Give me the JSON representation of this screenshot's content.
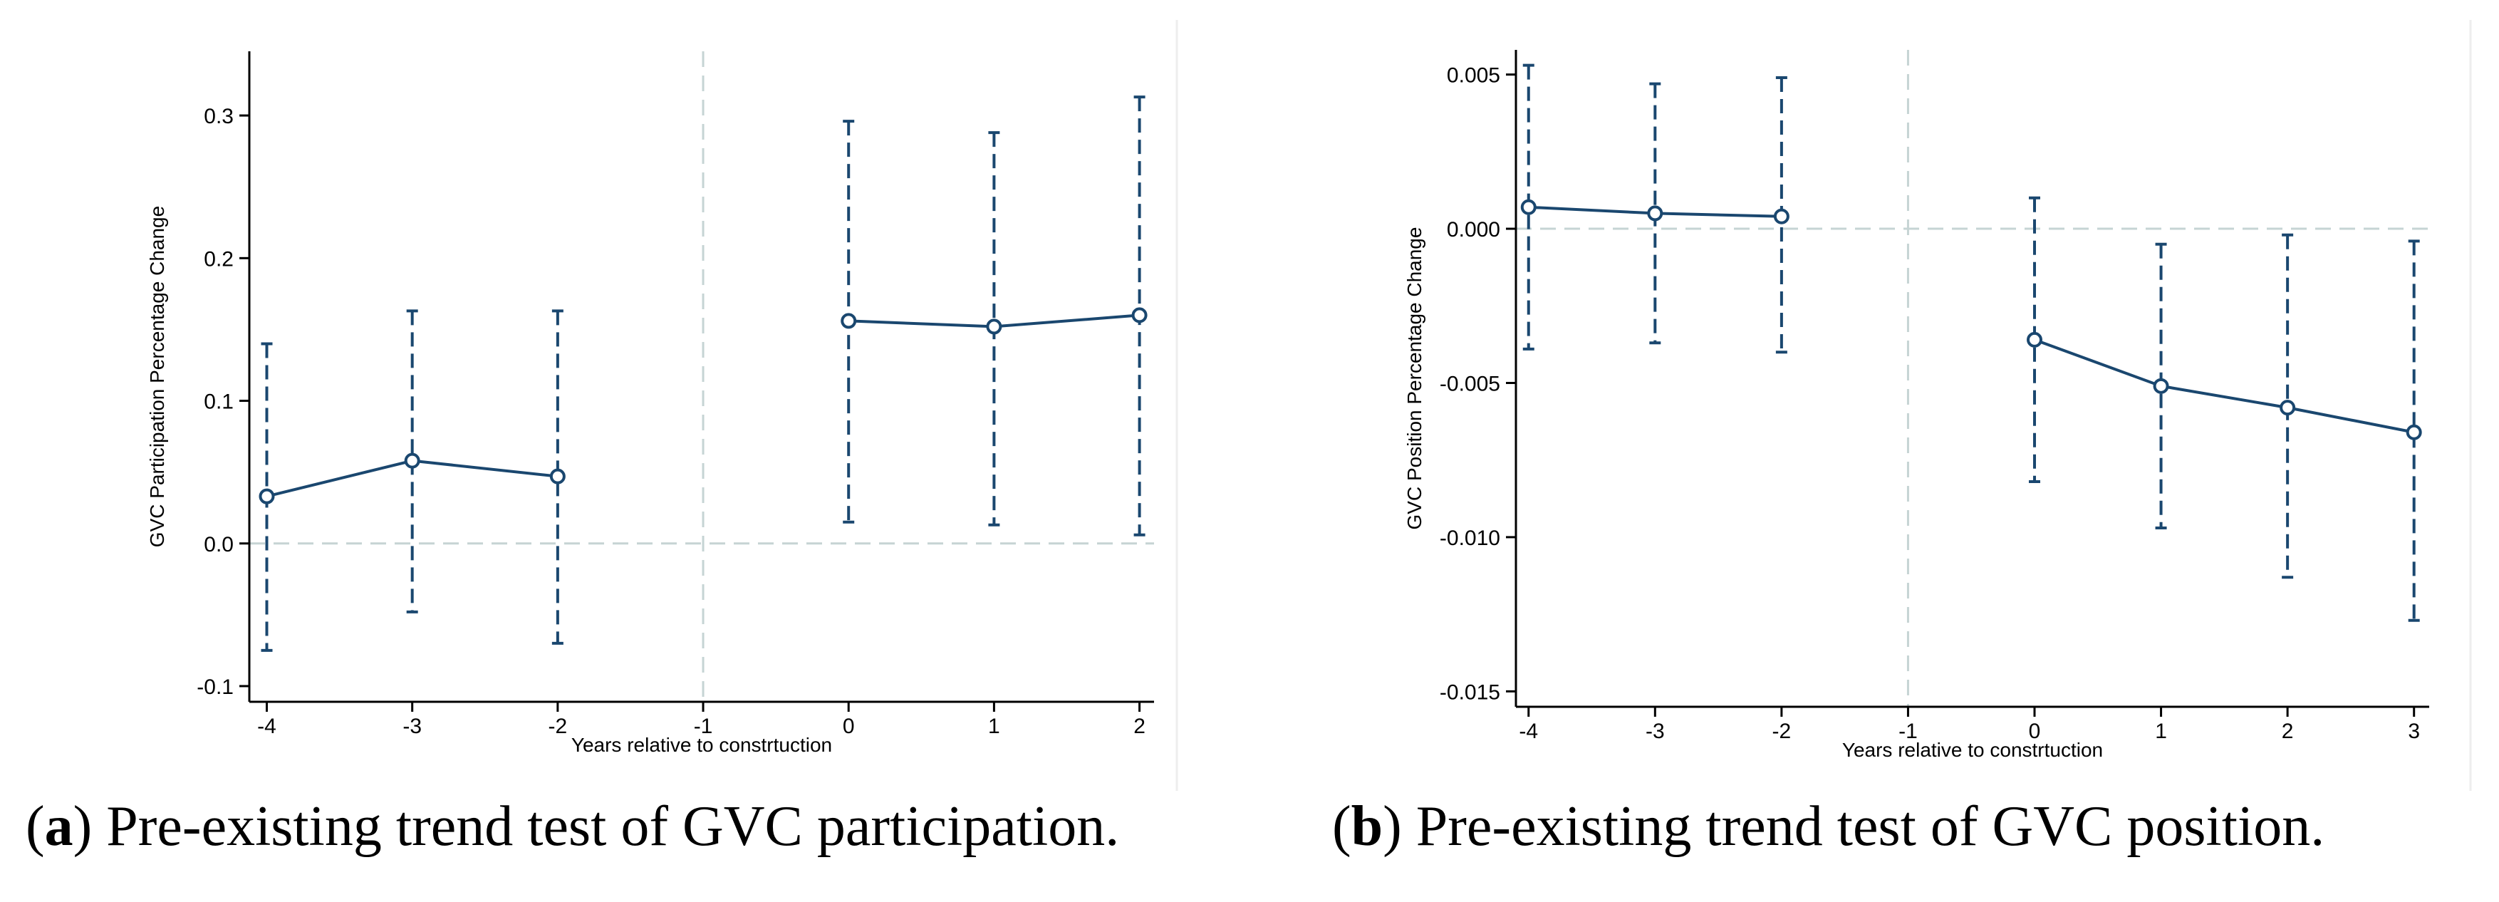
{
  "chart_data": [
    {
      "id": "a",
      "type": "line",
      "caption_letter": "a",
      "caption_text": "Pre-existing trend test of GVC participation.",
      "xlabel": "Years relative to constrtuction",
      "ylabel": "GVC Participation Percentage Change",
      "x_ticks": [
        -4,
        -3,
        -2,
        -1,
        0,
        1,
        2
      ],
      "x_tick_labels": [
        "-4",
        "-3",
        "-2",
        "-1",
        "0",
        "1",
        "2"
      ],
      "xlim": [
        -4.12,
        2.1
      ],
      "y_ticks": [
        -0.1,
        0.0,
        0.1,
        0.2,
        0.3
      ],
      "y_tick_labels": [
        "-0.1",
        "0.0",
        "0.1",
        "0.2",
        "0.3"
      ],
      "ylim": [
        -0.111,
        0.345
      ],
      "reference_x": -1,
      "reference_y": 0,
      "color": "#1a476f",
      "segments": [
        [
          {
            "x": -4,
            "y": 0.033,
            "lo": -0.075,
            "hi": 0.14
          },
          {
            "x": -3,
            "y": 0.058,
            "lo": -0.048,
            "hi": 0.163
          },
          {
            "x": -2,
            "y": 0.047,
            "lo": -0.07,
            "hi": 0.163
          }
        ],
        [
          {
            "x": 0,
            "y": 0.156,
            "lo": 0.015,
            "hi": 0.296
          },
          {
            "x": 1,
            "y": 0.152,
            "lo": 0.013,
            "hi": 0.288
          },
          {
            "x": 2,
            "y": 0.16,
            "lo": 0.006,
            "hi": 0.313
          }
        ]
      ]
    },
    {
      "id": "b",
      "type": "line",
      "caption_letter": "b",
      "caption_text": "Pre-existing trend test of GVC position.",
      "xlabel": "Years relative to constrtuction",
      "ylabel": "GVC Position Percentage Change",
      "x_ticks": [
        -4,
        -3,
        -2,
        -1,
        0,
        1,
        2,
        3
      ],
      "x_tick_labels": [
        "-4",
        "-3",
        "-2",
        "-1",
        "0",
        "1",
        "2",
        "3"
      ],
      "xlim": [
        -4.1,
        3.12
      ],
      "y_ticks": [
        -0.015,
        -0.01,
        -0.005,
        0.0,
        0.005
      ],
      "y_tick_labels": [
        "-0.015",
        "-0.010",
        "-0.005",
        "0.000",
        "0.005"
      ],
      "ylim": [
        -0.0155,
        0.0058
      ],
      "reference_x": -1,
      "reference_y": 0,
      "color": "#1a476f",
      "segments": [
        [
          {
            "x": -4,
            "y": 0.0007,
            "lo": -0.0039,
            "hi": 0.0053
          },
          {
            "x": -3,
            "y": 0.0005,
            "lo": -0.0037,
            "hi": 0.0047
          },
          {
            "x": -2,
            "y": 0.0004,
            "lo": -0.004,
            "hi": 0.0049
          }
        ],
        [
          {
            "x": 0,
            "y": -0.0036,
            "lo": -0.0082,
            "hi": 0.001
          },
          {
            "x": 1,
            "y": -0.0051,
            "lo": -0.0097,
            "hi": -0.0005
          },
          {
            "x": 2,
            "y": -0.0058,
            "lo": -0.0113,
            "hi": -0.0002
          },
          {
            "x": 3,
            "y": -0.0066,
            "lo": -0.0127,
            "hi": -0.0004
          }
        ]
      ]
    }
  ]
}
